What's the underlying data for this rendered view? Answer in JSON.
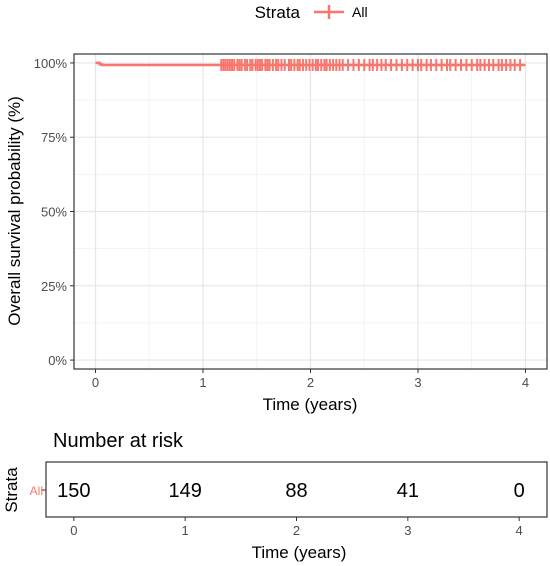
{
  "chart_data": [
    {
      "type": "line",
      "legend": {
        "title": "Strata",
        "placement": "top",
        "entries": [
          {
            "name": "All",
            "color": "#F8766D"
          }
        ]
      },
      "xlabel": "Time (years)",
      "ylabel": "Overall survival probability (%)",
      "xlim": [
        -0.2,
        4.2
      ],
      "ylim": [
        -3,
        103
      ],
      "x_ticks": [
        0,
        1,
        2,
        3,
        4
      ],
      "x_tick_labels": [
        "0",
        "1",
        "2",
        "3",
        "4"
      ],
      "y_ticks": [
        0,
        25,
        50,
        75,
        100
      ],
      "y_tick_labels": [
        "0%",
        "25%",
        "50%",
        "75%",
        "100%"
      ],
      "grid": true,
      "series": [
        {
          "name": "All",
          "color": "#F8766D",
          "step_x": [
            0,
            0.02,
            0.04,
            0.06,
            4.0
          ],
          "step_y": [
            100,
            100,
            99.5,
            99.3,
            99.3
          ],
          "censor_y": 99.3,
          "censor_x": [
            1.17,
            1.19,
            1.21,
            1.23,
            1.25,
            1.27,
            1.29,
            1.32,
            1.34,
            1.36,
            1.39,
            1.41,
            1.44,
            1.46,
            1.49,
            1.51,
            1.53,
            1.55,
            1.58,
            1.6,
            1.62,
            1.65,
            1.68,
            1.7,
            1.73,
            1.76,
            1.8,
            1.82,
            1.85,
            1.88,
            1.9,
            1.93,
            1.96,
            1.99,
            2.02,
            2.05,
            2.07,
            2.1,
            2.13,
            2.15,
            2.18,
            2.21,
            2.24,
            2.27,
            2.3,
            2.35,
            2.4,
            2.45,
            2.5,
            2.55,
            2.58,
            2.62,
            2.66,
            2.7,
            2.75,
            2.8,
            2.85,
            2.9,
            2.95,
            3.0,
            3.03,
            3.08,
            3.12,
            3.17,
            3.22,
            3.27,
            3.3,
            3.35,
            3.4,
            3.45,
            3.5,
            3.55,
            3.58,
            3.62,
            3.66,
            3.7,
            3.75,
            3.78,
            3.82,
            3.86,
            3.9,
            3.95
          ]
        }
      ]
    },
    {
      "type": "table",
      "title": "Number at risk",
      "xlabel": "Time (years)",
      "ylabel": "Strata",
      "row_labels": [
        "All"
      ],
      "row_color": "#F8766D",
      "x_ticks": [
        0,
        1,
        2,
        3,
        4
      ],
      "x_tick_labels": [
        "0",
        "1",
        "2",
        "3",
        "4"
      ],
      "values": [
        150,
        149,
        88,
        41,
        0
      ]
    }
  ]
}
